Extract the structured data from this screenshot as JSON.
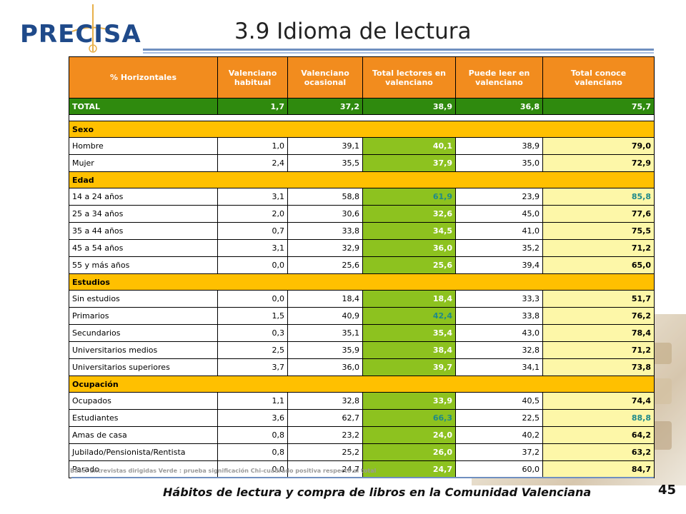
{
  "logo": {
    "text": "PRECISA"
  },
  "title": "3.9 Idioma de lectura",
  "table": {
    "headers": [
      "% Horizontales",
      "Valenciano habitual",
      "Valenciano ocasional",
      "Total lectores en valenciano",
      "Puede leer en valenciano",
      "Total conoce valenciano"
    ],
    "total": {
      "label": "TOTAL",
      "values": [
        "1,7",
        "37,2",
        "38,9",
        "36,8",
        "75,7"
      ]
    },
    "sections": [
      {
        "name": "Sexo",
        "rows": [
          {
            "label": "Hombre",
            "values": [
              "1,0",
              "39,1",
              "40,1",
              "38,9",
              "79,0"
            ],
            "sig_lect": false,
            "sig_conoce": false
          },
          {
            "label": "Mujer",
            "values": [
              "2,4",
              "35,5",
              "37,9",
              "35,0",
              "72,9"
            ],
            "sig_lect": false,
            "sig_conoce": false
          }
        ]
      },
      {
        "name": "Edad",
        "rows": [
          {
            "label": "14 a 24 años",
            "values": [
              "3,1",
              "58,8",
              "61,9",
              "23,9",
              "85,8"
            ],
            "sig_lect": true,
            "sig_conoce": true
          },
          {
            "label": "25 a 34 años",
            "values": [
              "2,0",
              "30,6",
              "32,6",
              "45,0",
              "77,6"
            ],
            "sig_lect": false,
            "sig_conoce": false
          },
          {
            "label": "35 a 44 años",
            "values": [
              "0,7",
              "33,8",
              "34,5",
              "41,0",
              "75,5"
            ],
            "sig_lect": false,
            "sig_conoce": false
          },
          {
            "label": "45 a 54 años",
            "values": [
              "3,1",
              "32,9",
              "36,0",
              "35,2",
              "71,2"
            ],
            "sig_lect": false,
            "sig_conoce": false
          },
          {
            "label": "55 y más años",
            "values": [
              "0,0",
              "25,6",
              "25,6",
              "39,4",
              "65,0"
            ],
            "sig_lect": false,
            "sig_conoce": false
          }
        ]
      },
      {
        "name": "Estudios",
        "rows": [
          {
            "label": "Sin estudios",
            "values": [
              "0,0",
              "18,4",
              "18,4",
              "33,3",
              "51,7"
            ],
            "sig_lect": false,
            "sig_conoce": false
          },
          {
            "label": "Primarios",
            "values": [
              "1,5",
              "40,9",
              "42,4",
              "33,8",
              "76,2"
            ],
            "sig_lect": true,
            "sig_conoce": false
          },
          {
            "label": "Secundarios",
            "values": [
              "0,3",
              "35,1",
              "35,4",
              "43,0",
              "78,4"
            ],
            "sig_lect": false,
            "sig_conoce": false
          },
          {
            "label": "Universitarios medios",
            "values": [
              "2,5",
              "35,9",
              "38,4",
              "32,8",
              "71,2"
            ],
            "sig_lect": false,
            "sig_conoce": false
          },
          {
            "label": "Universitarios superiores",
            "values": [
              "3,7",
              "36,0",
              "39,7",
              "34,1",
              "73,8"
            ],
            "sig_lect": false,
            "sig_conoce": false
          }
        ]
      },
      {
        "name": "Ocupación",
        "rows": [
          {
            "label": "Ocupados",
            "values": [
              "1,1",
              "32,8",
              "33,9",
              "40,5",
              "74,4"
            ],
            "sig_lect": false,
            "sig_conoce": false
          },
          {
            "label": "Estudiantes",
            "values": [
              "3,6",
              "62,7",
              "66,3",
              "22,5",
              "88,8"
            ],
            "sig_lect": true,
            "sig_conoce": true
          },
          {
            "label": "Amas de casa",
            "values": [
              "0,8",
              "23,2",
              "24,0",
              "40,2",
              "64,2"
            ],
            "sig_lect": false,
            "sig_conoce": false
          },
          {
            "label": "Jubilado/Pensionista/Rentista",
            "values": [
              "0,8",
              "25,2",
              "26,0",
              "37,2",
              "63,2"
            ],
            "sig_lect": false,
            "sig_conoce": false
          },
          {
            "label": "Parado",
            "values": [
              "0,0",
              "24,7",
              "24,7",
              "60,0",
              "84,7"
            ],
            "sig_lect": false,
            "sig_conoce": false
          }
        ]
      }
    ]
  },
  "note": "Base: Entrevistas dirigidas Verde : prueba significación Chi-cuadrado positiva respecto al total",
  "footer": "Hábitos de lectura y compra de libros en la Comunidad Valenciana",
  "page_number": "45",
  "colors": {
    "header": "#f28c1e",
    "total": "#2f8a0e",
    "section": "#ffc000",
    "lectores": "#8dc21f",
    "conoce": "#fdf7a8",
    "significant": "#1e8a8a"
  }
}
